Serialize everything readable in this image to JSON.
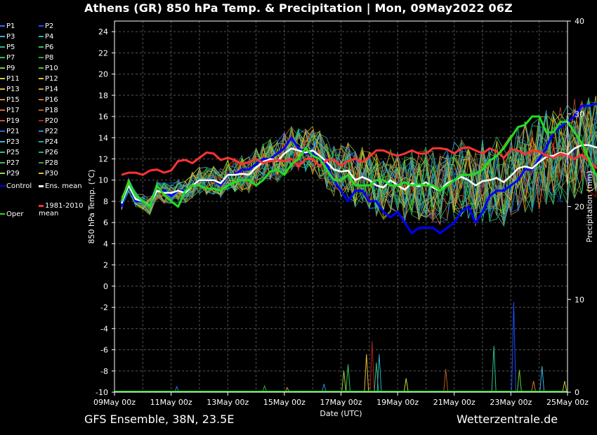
{
  "title": "Athens  (GR)  850 hPa Temp. & Precipitation | Mon, 09May2022 06Z",
  "footer": {
    "left": "GFS Ensemble, 38N, 23.5E",
    "right": "Wetterzentrale.de"
  },
  "chart_data": {
    "type": "line",
    "xlabel": "Date (UTC)",
    "ylabel": "850 hPa Temp. (°C)",
    "y2label": "Precipitation (mm)",
    "ylim": [
      -10,
      25
    ],
    "y2lim": [
      0,
      40
    ],
    "yticks": [
      24,
      22,
      20,
      18,
      16,
      14,
      12,
      10,
      8,
      6,
      4,
      2,
      0,
      -2,
      -4,
      -6,
      -8,
      -10
    ],
    "y2ticks": [
      40,
      30,
      20,
      10,
      0
    ],
    "xlim": [
      0,
      16
    ],
    "xticks": [
      {
        "x": 0,
        "label": "09May 00z"
      },
      {
        "x": 2,
        "label": "11May 00z"
      },
      {
        "x": 4,
        "label": "13May 00z"
      },
      {
        "x": 6,
        "label": "15May 00z"
      },
      {
        "x": 8,
        "label": "17May 00z"
      },
      {
        "x": 10,
        "label": "19May 00z"
      },
      {
        "x": 12,
        "label": "21May 00z"
      },
      {
        "x": 14,
        "label": "23May 00z"
      },
      {
        "x": 16,
        "label": "25May 00z"
      }
    ],
    "x_step_days": 0.25,
    "x_start_days": 0.25,
    "grid": true,
    "legend_position": "left",
    "member_colors": [
      "#2b6cff",
      "#1a4fff",
      "#3aa7d9",
      "#25b0c8",
      "#2ab38a",
      "#39c15c",
      "#2fc04a",
      "#28a845",
      "#64d23c",
      "#2fd11f",
      "#c6d23a",
      "#d8c23a",
      "#e0ba33",
      "#d99a2a",
      "#d8893a",
      "#c9762c",
      "#d06a2a",
      "#b55a25",
      "#d04a2a",
      "#b02020",
      "#2a64d8",
      "#2a8ad8",
      "#3ab0e0",
      "#22a6b8",
      "#2ac08a",
      "#2ab07a",
      "#3ab86a",
      "#35a05a",
      "#9ad23a",
      "#d8c02a"
    ],
    "legend": [
      {
        "label": "P1",
        "color": "#2b6cff"
      },
      {
        "label": "P2",
        "color": "#1a4fff"
      },
      {
        "label": "P3",
        "color": "#3aa7d9"
      },
      {
        "label": "P4",
        "color": "#25b0c8"
      },
      {
        "label": "P5",
        "color": "#2ab38a"
      },
      {
        "label": "P6",
        "color": "#39c15c"
      },
      {
        "label": "P7",
        "color": "#2fc04a"
      },
      {
        "label": "P8",
        "color": "#28a845"
      },
      {
        "label": "P9",
        "color": "#64d23c"
      },
      {
        "label": "P10",
        "color": "#2fd11f"
      },
      {
        "label": "P11",
        "color": "#c6d23a"
      },
      {
        "label": "P12",
        "color": "#d8c23a"
      },
      {
        "label": "P13",
        "color": "#e0ba33"
      },
      {
        "label": "P14",
        "color": "#d99a2a"
      },
      {
        "label": "P15",
        "color": "#d8893a"
      },
      {
        "label": "P16",
        "color": "#c9762c"
      },
      {
        "label": "P17",
        "color": "#d06a2a"
      },
      {
        "label": "P18",
        "color": "#b55a25"
      },
      {
        "label": "P19",
        "color": "#d04a2a"
      },
      {
        "label": "P20",
        "color": "#b02020"
      },
      {
        "label": "P21",
        "color": "#2a64d8"
      },
      {
        "label": "P22",
        "color": "#2a8ad8"
      },
      {
        "label": "P23",
        "color": "#3ab0e0"
      },
      {
        "label": "P24",
        "color": "#22a6b8"
      },
      {
        "label": "P25",
        "color": "#2ac08a"
      },
      {
        "label": "P26",
        "color": "#2ab07a"
      },
      {
        "label": "P27",
        "color": "#3ab86a"
      },
      {
        "label": "P28",
        "color": "#35a05a"
      },
      {
        "label": "P29",
        "color": "#9ad23a"
      },
      {
        "label": "P30",
        "color": "#d8c02a"
      },
      {
        "label": "Control",
        "color": "#0000ff"
      },
      {
        "label": "Ens. mean",
        "color": "#ffffff"
      },
      {
        "label": "1981-2010 mean",
        "color": "#ff3333"
      },
      {
        "label": "Oper",
        "color": "#22dd22"
      }
    ],
    "series": [
      {
        "name": "Control",
        "color": "#0000ff",
        "width": 3,
        "values": [
          7.5,
          9.5,
          8,
          8,
          7.5,
          9,
          9,
          8.5,
          9,
          9,
          9.5,
          10,
          10,
          10,
          9.5,
          10.5,
          10.5,
          11,
          11,
          11.5,
          12,
          12,
          12.5,
          13,
          14,
          13,
          12.5,
          12.5,
          12,
          11.5,
          10,
          9,
          8,
          9,
          9,
          8,
          8,
          7,
          6.5,
          7,
          6,
          5,
          5.5,
          5.5,
          5.5,
          5,
          5.5,
          6,
          7,
          7.5,
          6,
          7,
          8.5,
          9,
          9,
          9.5,
          10,
          11,
          11,
          12,
          13,
          14.5,
          15,
          15.5,
          16,
          17,
          17,
          17.2,
          17
        ]
      },
      {
        "name": "Ens. mean",
        "color": "#ffffff",
        "width": 2.5,
        "values": [
          7.8,
          9.5,
          8.2,
          8,
          7.6,
          9,
          8.8,
          8.8,
          9,
          8.8,
          9.5,
          10,
          10,
          10,
          9.7,
          10.5,
          10.5,
          10.6,
          10.5,
          11.2,
          11.7,
          12,
          11.8,
          12.5,
          13,
          12.8,
          12.6,
          12.8,
          12.3,
          11.7,
          11,
          10.8,
          10.9,
          10,
          10.3,
          10,
          9.5,
          9.3,
          10,
          9.5,
          9.1,
          9.7,
          9.4,
          9.8,
          9.3,
          9,
          9.7,
          10,
          10.3,
          10,
          9.5,
          9.9,
          10,
          10.2,
          9.8,
          10.4,
          11.1,
          11.3,
          11.1,
          11.7,
          12.2,
          12.3,
          12.6,
          12.4,
          13,
          13.3,
          13.3,
          13.1,
          13
        ]
      },
      {
        "name": "1981-2010 mean",
        "color": "#ff3333",
        "width": 3,
        "values": [
          10.5,
          10.7,
          10.7,
          10.5,
          10.9,
          11,
          10.7,
          10.9,
          11.8,
          11.9,
          11.6,
          12.1,
          12.6,
          12.5,
          11.9,
          12.1,
          11.9,
          11.5,
          11.7,
          12,
          11.6,
          11.8,
          11.9,
          11.8,
          12,
          11.3,
          12,
          12,
          11.3,
          11.9,
          11.9,
          11.4,
          11.8,
          12,
          11.7,
          12.2,
          12.8,
          12.8,
          12.5,
          12.3,
          12.5,
          12.8,
          12.5,
          12.5,
          13,
          13,
          12.9,
          12.5,
          13,
          13.1,
          12.8,
          12.5,
          13,
          12.7,
          12.1,
          12.9,
          12.8,
          12.4,
          12.8,
          12.7,
          12.3,
          12.1,
          12.5,
          12.3,
          12,
          12.4,
          11.8,
          11.2,
          11
        ]
      },
      {
        "name": "Oper",
        "color": "#22dd22",
        "width": 3,
        "values": [
          8,
          9.8,
          8.5,
          8,
          7.5,
          9.5,
          8.6,
          8,
          7.5,
          9,
          9.5,
          9.5,
          9.2,
          9.2,
          9,
          9.5,
          9.8,
          10,
          10,
          9.5,
          10,
          10.8,
          11,
          10.5,
          11.5,
          12,
          13,
          12.3,
          12,
          11,
          10,
          10,
          10.5,
          9.5,
          9.5,
          9.5,
          10,
          10,
          9.5,
          9.5,
          9.8,
          9.5,
          9.6,
          9.5,
          9.5,
          9,
          9.5,
          10,
          10.5,
          10.5,
          10.6,
          11,
          11.8,
          12.3,
          13,
          14,
          15,
          15.2,
          16,
          16,
          14.5,
          14.5,
          15.5,
          15.5,
          14.5,
          13.5,
          12,
          10.5,
          9.2
        ]
      }
    ],
    "precip_spikes": [
      {
        "x": 2.2,
        "mm": 0.6
      },
      {
        "x": 5.3,
        "mm": 0.7
      },
      {
        "x": 6.1,
        "mm": 0.5
      },
      {
        "x": 7.4,
        "mm": 0.9
      },
      {
        "x": 8.1,
        "mm": 2.3
      },
      {
        "x": 8.25,
        "mm": 3
      },
      {
        "x": 8.9,
        "mm": 4.1
      },
      {
        "x": 9.1,
        "mm": 5.5
      },
      {
        "x": 9.25,
        "mm": 3.2
      },
      {
        "x": 9.35,
        "mm": 4.1
      },
      {
        "x": 10.3,
        "mm": 1.5
      },
      {
        "x": 11.7,
        "mm": 2.5
      },
      {
        "x": 13.4,
        "mm": 5
      },
      {
        "x": 14.1,
        "mm": 9.7
      },
      {
        "x": 14.3,
        "mm": 2.4
      },
      {
        "x": 14.8,
        "mm": 1.2
      },
      {
        "x": 15.1,
        "mm": 2.8
      },
      {
        "x": 15.9,
        "mm": 1.2
      }
    ]
  }
}
